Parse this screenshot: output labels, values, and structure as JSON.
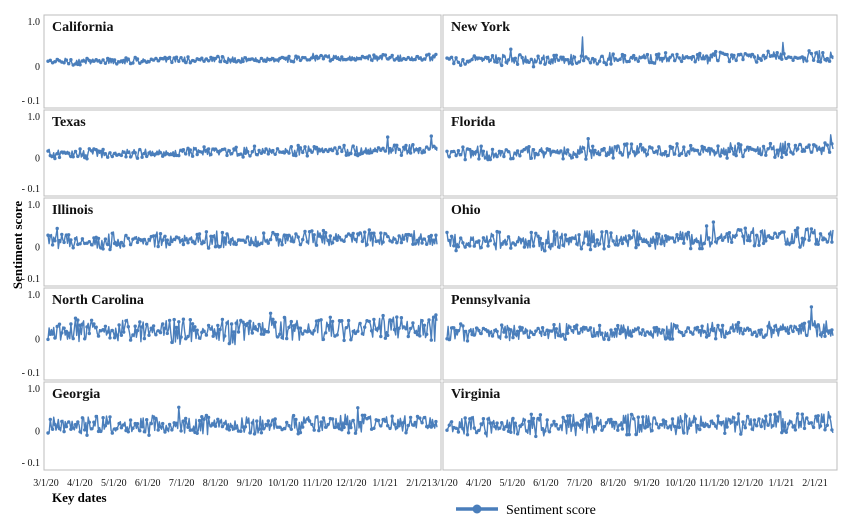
{
  "chart_data": {
    "type": "line",
    "ylabel": "Sentiment score",
    "xlabel": "Key dates",
    "legend": {
      "label": "Sentiment score",
      "placement": "bottom-right"
    },
    "series_color": "#4a7ebb",
    "ytick_labels": [
      "1.0",
      "0",
      "- 0.1"
    ],
    "xtick_labels": [
      "3/1/20",
      "4/1/20",
      "5/1/20",
      "6/1/20",
      "7/1/20",
      "8/1/20",
      "9/1/20",
      "10/1/20",
      "11/1/20",
      "12/1/20",
      "1/1/21",
      "2/1/21"
    ],
    "panels": [
      {
        "name": "California",
        "base": 0.1,
        "trend": 0.12,
        "noise": 0.06
      },
      {
        "name": "New York",
        "base": 0.13,
        "trend": 0.1,
        "noise": 0.1
      },
      {
        "name": "Texas",
        "base": 0.08,
        "trend": 0.14,
        "noise": 0.1
      },
      {
        "name": "Florida",
        "base": 0.08,
        "trend": 0.16,
        "noise": 0.14
      },
      {
        "name": "Illinois",
        "base": 0.12,
        "trend": 0.1,
        "noise": 0.15
      },
      {
        "name": "Ohio",
        "base": 0.1,
        "trend": 0.15,
        "noise": 0.18
      },
      {
        "name": "North Carolina",
        "base": 0.15,
        "trend": 0.1,
        "noise": 0.22
      },
      {
        "name": "Pennsylvania",
        "base": 0.12,
        "trend": 0.12,
        "noise": 0.14
      },
      {
        "name": "Georgia",
        "base": 0.1,
        "trend": 0.1,
        "noise": 0.18
      },
      {
        "name": "Virginia",
        "base": 0.1,
        "trend": 0.12,
        "noise": 0.2
      }
    ]
  }
}
